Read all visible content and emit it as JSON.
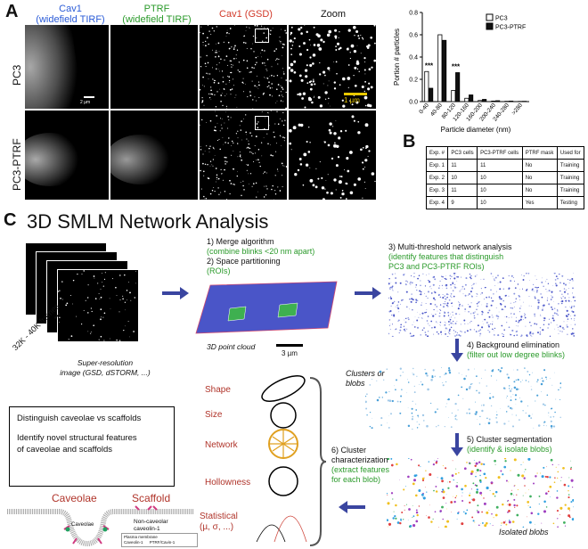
{
  "panel_a": {
    "letter": "A",
    "columns": [
      {
        "title": "Cav1",
        "subtitle": "(widefield TIRF)",
        "color": "#2a5bd7"
      },
      {
        "title": "PTRF",
        "subtitle": "(widefield TIRF)",
        "color": "#2a9a2a"
      },
      {
        "title": "Cav1 (GSD)",
        "subtitle": "",
        "color": "#d23a2a"
      },
      {
        "title": "Zoom",
        "subtitle": "",
        "color": "#111111"
      }
    ],
    "rows": [
      "PC3",
      "PC3-PTRF"
    ],
    "scalebar_small": "2 µm",
    "scalebar_zoom": "1 µm"
  },
  "chart_data": {
    "type": "bar",
    "categories": [
      "0-40",
      "40-80",
      "80-120",
      "120-160",
      "160-200",
      "200-240",
      "240-280",
      ">280"
    ],
    "series": [
      {
        "name": "PC3",
        "values": [
          0.27,
          0.6,
          0.1,
          0.03,
          0.01,
          0.005,
          0.003,
          0.002
        ]
      },
      {
        "name": "PC3-PTRF",
        "values": [
          0.12,
          0.55,
          0.26,
          0.06,
          0.02,
          0.008,
          0.005,
          0.003
        ]
      }
    ],
    "xlabel": "Particle diameter (nm)",
    "ylabel": "Portion # particles",
    "yticks": [
      "0.0",
      "0.2",
      "0.4",
      "0.6",
      "0.8"
    ],
    "ylim": [
      0,
      0.8
    ],
    "significance": [
      {
        "category": "0-40",
        "label": "***"
      },
      {
        "category": "80-120",
        "label": "***"
      }
    ],
    "legend_position": "top-right"
  },
  "panel_b": {
    "letter": "B",
    "headers": [
      "Exp. #",
      "PC3 cells",
      "PC3-PTRF cells",
      "PTRF mask",
      "Used for"
    ],
    "rows": [
      [
        "Exp. 1",
        "11",
        "11",
        "No",
        "Training"
      ],
      [
        "Exp. 2",
        "10",
        "10",
        "No",
        "Training"
      ],
      [
        "Exp. 3",
        "11",
        "10",
        "No",
        "Training"
      ],
      [
        "Exp. 4",
        "9",
        "10",
        "Yes",
        "Testing"
      ]
    ]
  },
  "panel_c": {
    "letter": "C",
    "title": "3D SMLM Network Analysis",
    "frames_label": "32K - 40K frames",
    "dots": "•••",
    "image_caption_1": "Super-resolution",
    "image_caption_2": "image (GSD, dSTORM, ...)",
    "step1": "1) Merge algorithm",
    "step1_note": "(combine blinks <20 nm apart)",
    "step2": "2) Space partitioning",
    "step2_note": "(ROIs)",
    "cloud_label": "3D point cloud",
    "cloud_scale": "3 µm",
    "step3": "3) Multi-threshold network analysis",
    "step3_note_1": "(identify features that distinguish",
    "step3_note_2": "PC3 and PC3-PTRF ROIs)",
    "step4": "4) Background elimination",
    "step4_note": "(filter out low degree blinks)",
    "clusters_label_1": "Clusters or",
    "clusters_label_2": "blobs",
    "step5": "5) Cluster segmentation",
    "step5_note": "(identify & isolate blobs)",
    "isolated_label": "Isolated blobs",
    "step6_1": "6) Cluster",
    "step6_2": "characterization",
    "step6_note_1": "(extract features",
    "step6_note_2": "for each blob)",
    "features": [
      "Shape",
      "Size",
      "Network",
      "Hollowness",
      "Statistical",
      "(µ, σ, ...)"
    ],
    "goal_1": "Distinguish caveolae vs scaffolds",
    "goal_2_1": "Identify novel structural features",
    "goal_2_2": "of caveolae and scaffolds",
    "caveolae_title": "Caveolae",
    "scaffold_title": "Scaffold",
    "caveolae_inner": "Caveolae",
    "scaffold_note_1": "Non-caveolar",
    "scaffold_note_2": "caveolin-1",
    "legend_membrane": "Plasma membrane",
    "legend_cav": "Caveolin-1",
    "legend_ptrf": "PTRF/Cavin-1"
  }
}
